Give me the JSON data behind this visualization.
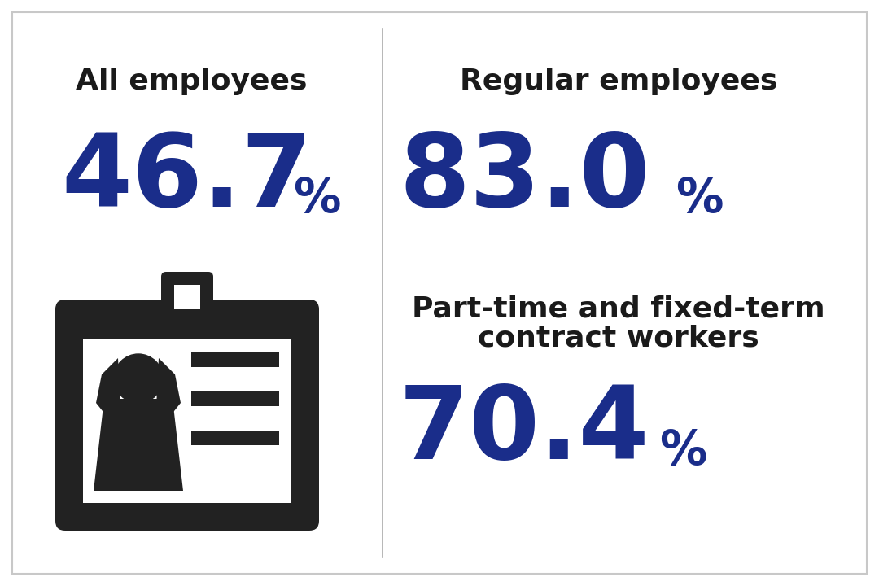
{
  "bg_color": "#ffffff",
  "border_color": "#c8c8c8",
  "left_label": "All employees",
  "left_value": "46.7",
  "right_label1": "Regular employees",
  "right_value1": "83.0",
  "right_label2_line1": "Part-time and fixed-term",
  "right_label2_line2": "contract workers",
  "right_value2": "70.4",
  "percent_sign": "%",
  "label_color": "#1a1a1a",
  "value_color": "#1a2d8a",
  "divider_color": "#aaaaaa",
  "label_fontsize": 26,
  "value_fontsize": 90,
  "pct_fontsize": 42,
  "icon_color": "#222222"
}
